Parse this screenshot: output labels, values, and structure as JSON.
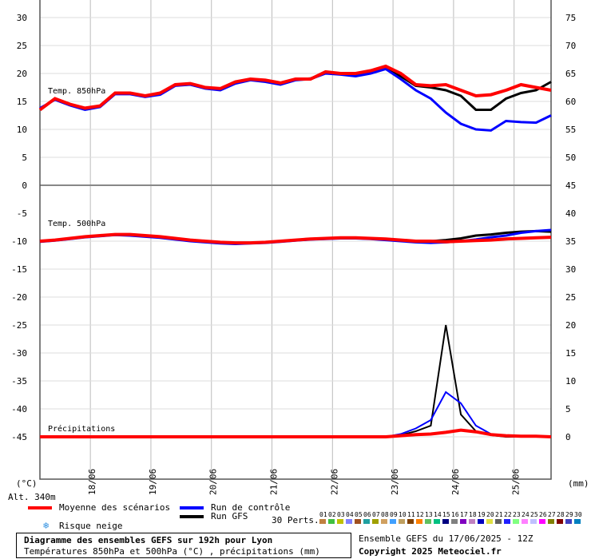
{
  "chart_data": {
    "type": "line",
    "title": "Diagramme des ensembles GEFS sur 192h pour Lyon",
    "subtitle": "Températures 850hPa et 500hPa (°C) , précipitations (mm)",
    "run_info": "Ensemble GEFS du 17/06/2025 - 12Z",
    "copyright": "Copyright 2025 Meteociel.fr",
    "altitude": "Alt. 340m",
    "left_unit": "(°C)",
    "right_unit": "(mm)",
    "panel_labels": {
      "t850": "Temp. 850hPa",
      "t500": "Temp. 500hPa",
      "precip": "Précipitations"
    },
    "x_dates": [
      "18/06",
      "19/06",
      "20/06",
      "21/06",
      "22/06",
      "23/06",
      "24/06",
      "25/06"
    ],
    "x_hours_range": [
      0,
      192
    ],
    "top_panel": {
      "left_ticks": [
        30,
        25,
        20,
        15,
        10,
        5,
        0
      ],
      "right_ticks": [
        75,
        70,
        65,
        60,
        55,
        50
      ]
    },
    "bottom_panel": {
      "left_ticks": [
        -5,
        -10,
        -15,
        -20,
        -25,
        -30,
        -35,
        -40,
        -45
      ],
      "right_ticks": [
        45,
        40,
        35,
        30,
        25,
        20,
        15,
        10,
        5,
        0
      ]
    },
    "series": [
      {
        "name": "Moyenne des scénarios",
        "color": "#ff0000",
        "t850": [
          13.5,
          15.5,
          14.5,
          13.8,
          14.2,
          16.5,
          16.5,
          16.0,
          16.5,
          18.0,
          18.2,
          17.5,
          17.3,
          18.5,
          19.0,
          18.8,
          18.3,
          19.0,
          19.0,
          20.3,
          20.0,
          20.0,
          20.5,
          21.3,
          20.0,
          18.0,
          17.8,
          18.0,
          17.0,
          16.0,
          16.2,
          17.0,
          18.0,
          17.5,
          17.0
        ],
        "t500": [
          -10.0,
          -9.8,
          -9.5,
          -9.2,
          -9.0,
          -8.8,
          -8.8,
          -9.0,
          -9.2,
          -9.5,
          -9.8,
          -10.0,
          -10.2,
          -10.3,
          -10.3,
          -10.2,
          -10.0,
          -9.8,
          -9.6,
          -9.5,
          -9.4,
          -9.4,
          -9.5,
          -9.6,
          -9.8,
          -10.0,
          -10.0,
          -10.1,
          -10.0,
          -9.9,
          -9.8,
          -9.6,
          -9.5,
          -9.4,
          -9.3
        ],
        "precip": [
          0,
          0,
          0,
          0,
          0,
          0,
          0,
          0,
          0,
          0,
          0,
          0,
          0,
          0,
          0,
          0,
          0,
          0,
          0,
          0,
          0,
          0,
          0,
          0,
          0.2,
          0.4,
          0.5,
          0.8,
          1.2,
          0.9,
          0.4,
          0.2,
          0.1,
          0.1,
          0
        ]
      },
      {
        "name": "Run de contrôle",
        "color": "#0000ff",
        "t850": [
          13.8,
          15.3,
          14.3,
          13.5,
          14.0,
          16.3,
          16.3,
          15.8,
          16.2,
          17.8,
          18.0,
          17.3,
          17.0,
          18.2,
          18.8,
          18.5,
          18.0,
          18.8,
          19.0,
          20.0,
          19.8,
          19.5,
          20.0,
          20.8,
          19.0,
          17.0,
          15.5,
          13.0,
          11.0,
          10.0,
          9.8,
          11.5,
          11.3,
          11.2,
          12.5
        ],
        "t500": [
          -10.1,
          -9.9,
          -9.6,
          -9.3,
          -9.1,
          -8.9,
          -9.0,
          -9.2,
          -9.4,
          -9.7,
          -10.0,
          -10.2,
          -10.4,
          -10.5,
          -10.4,
          -10.3,
          -10.1,
          -9.9,
          -9.7,
          -9.6,
          -9.5,
          -9.5,
          -9.6,
          -9.8,
          -10.0,
          -10.2,
          -10.3,
          -10.2,
          -10.0,
          -9.7,
          -9.3,
          -9.0,
          -8.5,
          -8.2,
          -8.0
        ],
        "precip": [
          0,
          0,
          0,
          0,
          0,
          0,
          0,
          0,
          0,
          0,
          0,
          0,
          0,
          0,
          0,
          0,
          0,
          0,
          0,
          0,
          0,
          0,
          0,
          0,
          0.5,
          1.5,
          3,
          8,
          6,
          2,
          0.5,
          0.2,
          0,
          0,
          0
        ]
      },
      {
        "name": "Run GFS",
        "color": "#000000",
        "t850": [
          13.6,
          15.4,
          14.4,
          13.7,
          14.1,
          16.4,
          16.4,
          15.9,
          16.4,
          17.9,
          18.1,
          17.4,
          17.2,
          18.3,
          18.9,
          18.7,
          18.2,
          18.9,
          19.1,
          20.1,
          19.9,
          19.8,
          20.3,
          21.0,
          19.5,
          17.8,
          17.5,
          17.0,
          16.0,
          13.5,
          13.5,
          15.5,
          16.5,
          17.0,
          18.5
        ],
        "t500": [
          -10.0,
          -9.8,
          -9.5,
          -9.2,
          -9.0,
          -8.8,
          -8.9,
          -9.1,
          -9.3,
          -9.6,
          -9.9,
          -10.1,
          -10.3,
          -10.4,
          -10.3,
          -10.2,
          -10.0,
          -9.8,
          -9.6,
          -9.5,
          -9.4,
          -9.4,
          -9.5,
          -9.7,
          -9.9,
          -10.1,
          -10.0,
          -9.8,
          -9.5,
          -9.0,
          -8.8,
          -8.5,
          -8.3,
          -8.2,
          -8.3
        ],
        "precip": [
          0,
          0,
          0,
          0,
          0,
          0,
          0,
          0,
          0,
          0,
          0,
          0,
          0,
          0,
          0,
          0,
          0,
          0,
          0,
          0,
          0,
          0,
          0,
          0,
          0.3,
          1,
          2,
          20,
          4,
          1,
          0.3,
          0,
          0,
          0,
          0
        ]
      }
    ],
    "perturbations_count_label": "30 Perts.",
    "perturbation_colors": [
      "#c08040",
      "#40c040",
      "#c0c000",
      "#8080ff",
      "#a05020",
      "#20a0a0",
      "#a0a000",
      "#d0a060",
      "#40a0ff",
      "#c0a060",
      "#804000",
      "#ff8000",
      "#60c060",
      "#00c080",
      "#000080",
      "#808080",
      "#8000c0",
      "#c080c0",
      "#0000c0",
      "#e0e040",
      "#606060",
      "#2020ff",
      "#80ff80",
      "#ff80ff",
      "#c0c0ff",
      "#ff00ff",
      "#808000",
      "#800000",
      "#4040c0",
      "#0080c0"
    ],
    "perturbation_labels": [
      "01",
      "02",
      "03",
      "04",
      "05",
      "06",
      "07",
      "08",
      "09",
      "10",
      "11",
      "12",
      "13",
      "14",
      "15",
      "16",
      "17",
      "18",
      "19",
      "20",
      "21",
      "22",
      "23",
      "24",
      "25",
      "26",
      "27",
      "28",
      "29",
      "30"
    ]
  },
  "legend": {
    "mean": "Moyenne des scénarios",
    "control": "Run de contrôle",
    "gfs": "Run GFS",
    "snow_icon": "snowflake-icon",
    "snow": "Risque neige"
  }
}
